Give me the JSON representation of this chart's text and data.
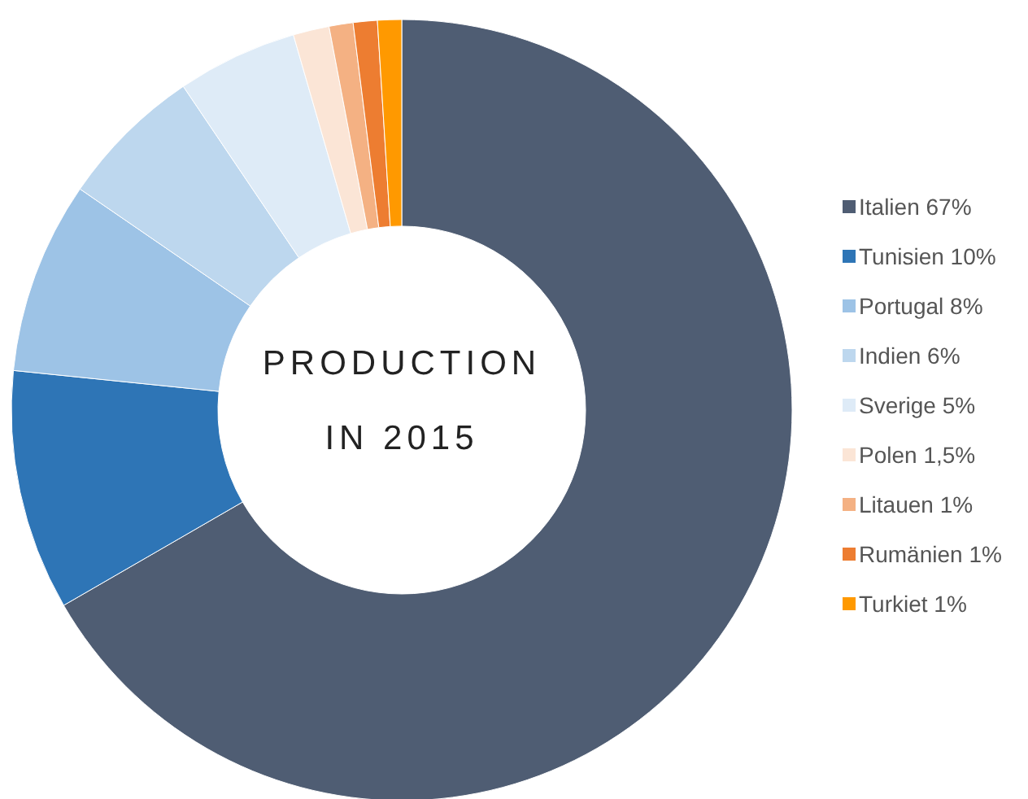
{
  "chart_data": {
    "type": "donut",
    "title": "PRODUCTION IN 2015",
    "categories": [
      "Italien",
      "Tunisien",
      "Portugal",
      "Indien",
      "Sverige",
      "Polen",
      "Litauen",
      "Rumänien",
      "Turkiet"
    ],
    "values": [
      67,
      10,
      8,
      6,
      5,
      1.5,
      1,
      1,
      1
    ],
    "value_labels": [
      "67%",
      "10%",
      "8%",
      "6%",
      "5%",
      "1,5%",
      "1%",
      "1%",
      "1%"
    ],
    "colors": [
      "#4f5d73",
      "#2e75b6",
      "#9dc3e6",
      "#bdd7ee",
      "#deebf7",
      "#fbe5d6",
      "#f4b183",
      "#ed7d31",
      "#ff9900"
    ],
    "legend": "right"
  }
}
